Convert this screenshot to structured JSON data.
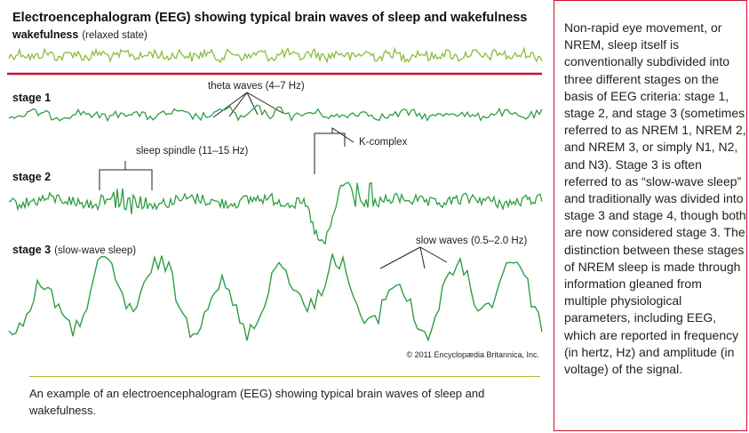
{
  "figure": {
    "title": "Electroencephalogram (EEG) showing typical brain waves of sleep and wakefulness",
    "wakefulness": {
      "label": "wakefulness",
      "note": "(relaxed state)"
    },
    "stage1": {
      "label": "stage 1",
      "annotation": "theta waves (4–7 Hz)"
    },
    "stage2": {
      "label": "stage 2",
      "spindle": "sleep spindle (11–15 Hz)",
      "kcomplex": "K-complex"
    },
    "stage3": {
      "label": "stage 3",
      "note": "(slow-wave sleep)",
      "annotation": "slow waves (0.5–2.0 Hz)"
    },
    "copyright": "© 2011 Encyclopædia Britannica, Inc.",
    "colors": {
      "wake": "#8dbb3c",
      "sleep": "#2f9e44",
      "divider": "#c8102e"
    }
  },
  "caption": "An example of an electroencephalogram (EEG) showing typical brain waves of sleep and wakefulness.",
  "side_text": "Non-rapid eye movement, or NREM, sleep itself is conventionally subdivided into three different stages on the basis of EEG criteria: stage 1, stage 2, and stage 3 (sometimes referred to as NREM 1, NREM 2, and NREM 3, or simply N1, N2, and N3). Stage 3 is often referred to as “slow-wave sleep” and traditionally was divided into stage 3 and stage 4, though both are now considered stage 3. The distinction between these stages of NREM sleep is made through information gleaned from multiple physiological parameters, including EEG, which are reported in frequency (in hertz, Hz) and amplitude (in voltage) of the signal."
}
